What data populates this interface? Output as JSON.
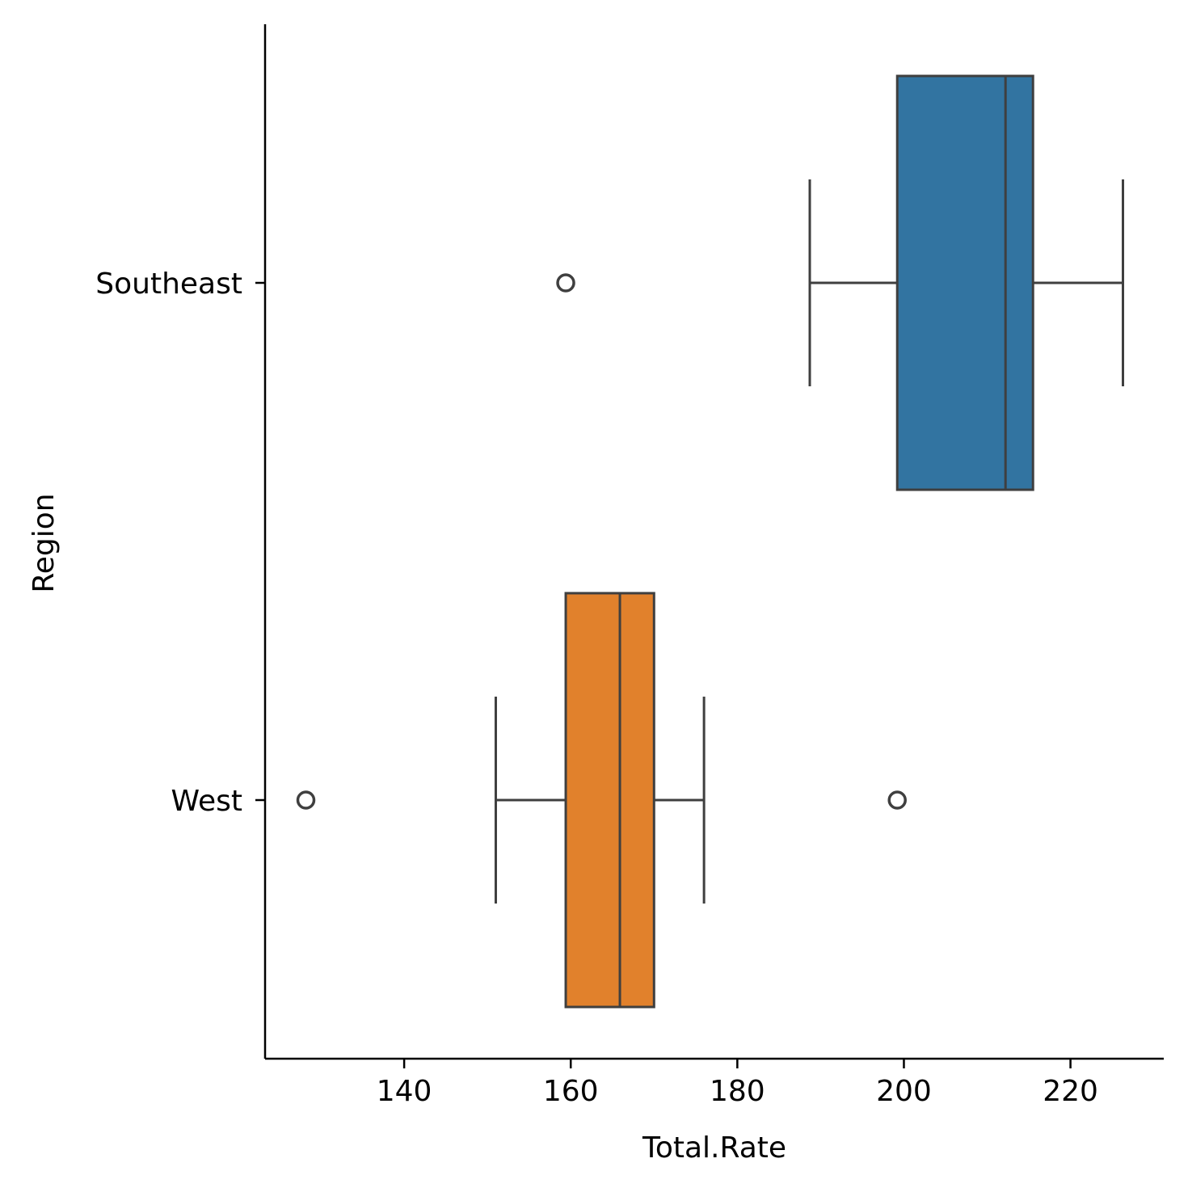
{
  "chart_data": {
    "type": "box",
    "orientation": "horizontal",
    "xlabel": "Total.Rate",
    "ylabel": "Region",
    "xlim": [
      123.3,
      231.2
    ],
    "xticks": [
      {
        "value": 140,
        "label": "140"
      },
      {
        "value": 160,
        "label": "160"
      },
      {
        "value": 180,
        "label": "180"
      },
      {
        "value": 200,
        "label": "200"
      },
      {
        "value": 220,
        "label": "220"
      }
    ],
    "grid": false,
    "categories": [
      "Southeast",
      "West"
    ],
    "series": [
      {
        "name": "Southeast",
        "color": "#3274a1",
        "whisker_low": 188.7,
        "q1": 199.2,
        "median": 212.2,
        "q3": 215.5,
        "whisker_high": 226.3,
        "outliers": [
          159.4
        ]
      },
      {
        "name": "West",
        "color": "#e1812c",
        "whisker_low": 151.0,
        "q1": 159.4,
        "median": 165.9,
        "q3": 170.0,
        "whisker_high": 176.0,
        "outliers": [
          128.2,
          199.2
        ]
      }
    ]
  }
}
